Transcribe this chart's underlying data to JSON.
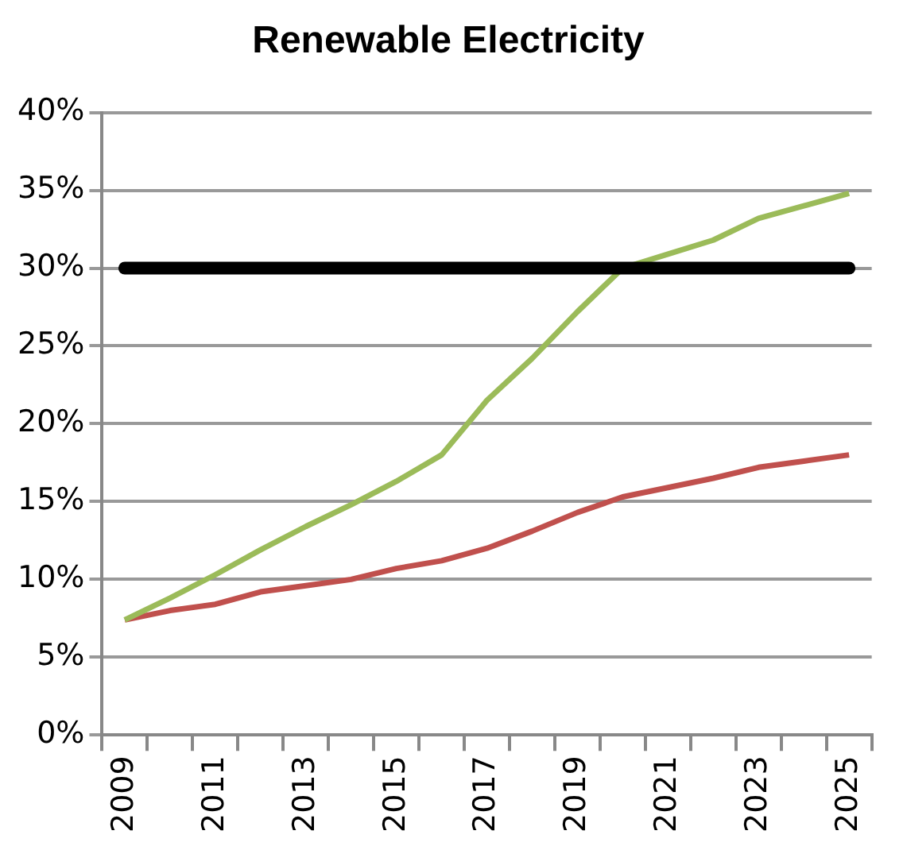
{
  "chart_data": {
    "type": "line",
    "title": "Renewable Electricity",
    "categories": [
      "2009",
      null,
      "2011",
      null,
      "2013",
      null,
      "2015",
      null,
      "2017",
      null,
      "2019",
      null,
      "2021",
      null,
      "2023",
      null,
      "2025"
    ],
    "series": [
      {
        "color": "#9bbb59",
        "values": [
          7.4,
          8.8,
          10.3,
          11.9,
          13.4,
          14.8,
          16.3,
          18,
          21.5,
          24.2,
          27.2,
          30,
          30.9,
          31.8,
          33.2,
          34,
          34.8
        ]
      },
      {
        "color": "#c0504d",
        "values": [
          7.4,
          8,
          8.4,
          9.2,
          9.6,
          10,
          10.7,
          11.2,
          12,
          13.1,
          14.3,
          15.3,
          15.9,
          16.5,
          17.2,
          17.6,
          18
        ]
      }
    ],
    "ref_lines": [
      {
        "axis": "y",
        "value": 30,
        "color": "#000000"
      }
    ],
    "ylim": [
      0,
      40
    ],
    "yticks": [
      {
        "value": 0,
        "label": "0%"
      },
      {
        "value": 5,
        "label": "5%"
      },
      {
        "value": 10,
        "label": "10%"
      },
      {
        "value": 15,
        "label": "15%"
      },
      {
        "value": 20,
        "label": "20%"
      },
      {
        "value": 25,
        "label": "25%"
      },
      {
        "value": 30,
        "label": "30%"
      },
      {
        "value": 35,
        "label": "35%"
      },
      {
        "value": 40,
        "label": "40%"
      }
    ],
    "grid": "y",
    "legend": false,
    "marker": "none",
    "line_style": "solid"
  }
}
